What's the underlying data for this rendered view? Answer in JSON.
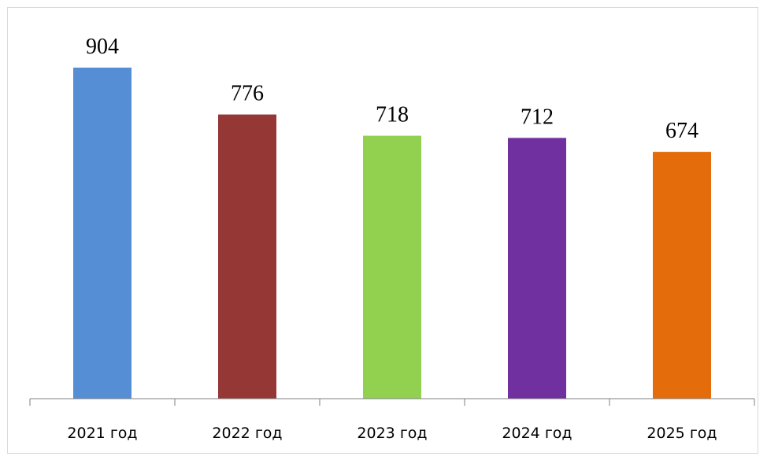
{
  "chart_data": {
    "type": "bar",
    "categories": [
      "2021 год",
      "2022 год",
      "2023 год",
      "2024 год",
      "2025 год"
    ],
    "values": [
      904,
      776,
      718,
      712,
      674
    ],
    "colors": [
      "#558ed5",
      "#953735",
      "#92d050",
      "#7030a0",
      "#e46c0a"
    ],
    "ylim": [
      0,
      904
    ],
    "grid": false,
    "legend": "none",
    "data_labels": true
  }
}
